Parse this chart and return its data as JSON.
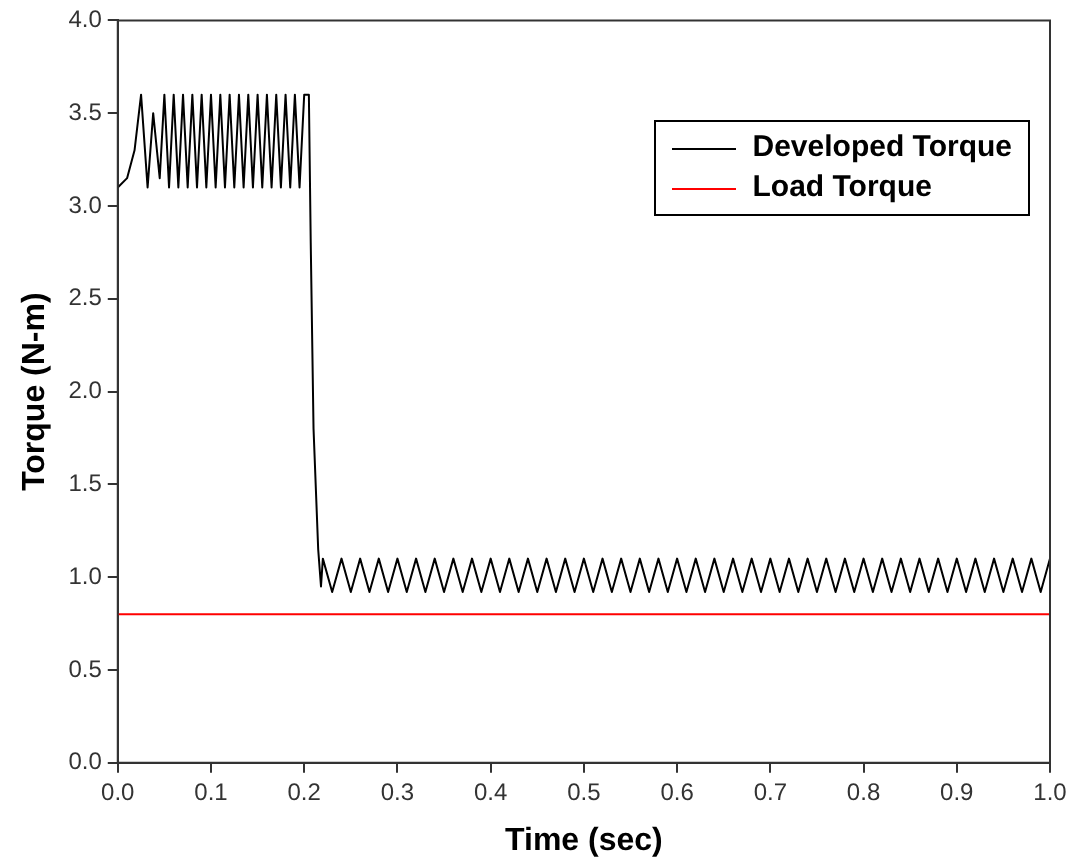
{
  "chart_data": {
    "type": "line",
    "xlabel": "Time (sec)",
    "ylabel": "Torque (N-m)",
    "xlim": [
      0,
      1
    ],
    "ylim": [
      0,
      4
    ],
    "xticks": [
      {
        "value": 0,
        "label": "0.0"
      },
      0.1,
      0.2,
      0.3,
      0.4,
      0.5,
      0.6,
      0.7,
      0.8,
      0.9,
      {
        "value": 1,
        "label": "1.0"
      }
    ],
    "yticks": [
      {
        "value": 0,
        "label": "0.0"
      },
      0.5,
      {
        "value": 1,
        "label": "1.0"
      },
      1.5,
      {
        "value": 2,
        "label": "2.0"
      },
      2.5,
      {
        "value": 3,
        "label": "3.0"
      },
      3.5,
      {
        "value": 4,
        "label": "4.0"
      }
    ],
    "grid": false,
    "legend": "top right",
    "marker": "none",
    "line_style": "solid",
    "series": [
      {
        "name": "Developed Torque",
        "color": "#000000",
        "x": [
          0,
          0.01,
          0.018,
          0.025,
          0.032,
          0.038,
          0.045,
          0.05,
          0.055,
          0.06,
          0.065,
          0.07,
          0.075,
          0.08,
          0.085,
          0.09,
          0.095,
          0.1,
          0.105,
          0.11,
          0.115,
          0.12,
          0.125,
          0.13,
          0.135,
          0.14,
          0.145,
          0.15,
          0.155,
          0.16,
          0.165,
          0.17,
          0.175,
          0.18,
          0.185,
          0.19,
          0.195,
          0.2,
          0.205,
          0.207,
          0.21,
          0.215,
          0.218,
          0.22,
          0.23,
          0.24,
          0.25,
          0.26,
          0.27,
          0.28,
          0.29,
          0.3,
          0.31,
          0.32,
          0.33,
          0.34,
          0.35,
          0.36,
          0.37,
          0.38,
          0.39,
          0.4,
          0.41,
          0.42,
          0.43,
          0.44,
          0.45,
          0.46,
          0.47,
          0.48,
          0.49,
          0.5,
          0.51,
          0.52,
          0.53,
          0.54,
          0.55,
          0.56,
          0.57,
          0.58,
          0.59,
          0.6,
          0.61,
          0.62,
          0.63,
          0.64,
          0.65,
          0.66,
          0.67,
          0.68,
          0.69,
          0.7,
          0.71,
          0.72,
          0.73,
          0.74,
          0.75,
          0.76,
          0.77,
          0.78,
          0.79,
          0.8,
          0.81,
          0.82,
          0.83,
          0.84,
          0.85,
          0.86,
          0.87,
          0.88,
          0.89,
          0.9,
          0.91,
          0.92,
          0.93,
          0.94,
          0.95,
          0.96,
          0.97,
          0.98,
          0.99,
          1.0
        ],
        "values": [
          3.1,
          3.15,
          3.3,
          3.6,
          3.1,
          3.5,
          3.15,
          3.6,
          3.1,
          3.6,
          3.1,
          3.6,
          3.1,
          3.6,
          3.1,
          3.6,
          3.1,
          3.6,
          3.1,
          3.6,
          3.1,
          3.6,
          3.1,
          3.6,
          3.1,
          3.6,
          3.1,
          3.6,
          3.1,
          3.6,
          3.1,
          3.6,
          3.1,
          3.6,
          3.1,
          3.6,
          3.1,
          3.6,
          3.6,
          2.8,
          1.8,
          1.15,
          0.95,
          1.1,
          0.92,
          1.1,
          0.92,
          1.1,
          0.92,
          1.1,
          0.92,
          1.1,
          0.92,
          1.1,
          0.92,
          1.1,
          0.92,
          1.1,
          0.92,
          1.1,
          0.92,
          1.1,
          0.92,
          1.1,
          0.92,
          1.1,
          0.92,
          1.1,
          0.92,
          1.1,
          0.92,
          1.1,
          0.92,
          1.1,
          0.92,
          1.1,
          0.92,
          1.1,
          0.92,
          1.1,
          0.92,
          1.1,
          0.92,
          1.1,
          0.92,
          1.1,
          0.92,
          1.1,
          0.92,
          1.1,
          0.92,
          1.1,
          0.92,
          1.1,
          0.92,
          1.1,
          0.92,
          1.1,
          0.92,
          1.1,
          0.92,
          1.1,
          0.92,
          1.1,
          0.92,
          1.1,
          0.92,
          1.1,
          0.92,
          1.1,
          0.92,
          1.1,
          0.92,
          1.1,
          0.92,
          1.1,
          0.92,
          1.1,
          0.92,
          1.1,
          0.92,
          1.1
        ]
      },
      {
        "name": "Load Torque",
        "color": "#ff0000",
        "x": [
          0,
          1
        ],
        "values": [
          0.8,
          0.8
        ]
      }
    ]
  }
}
